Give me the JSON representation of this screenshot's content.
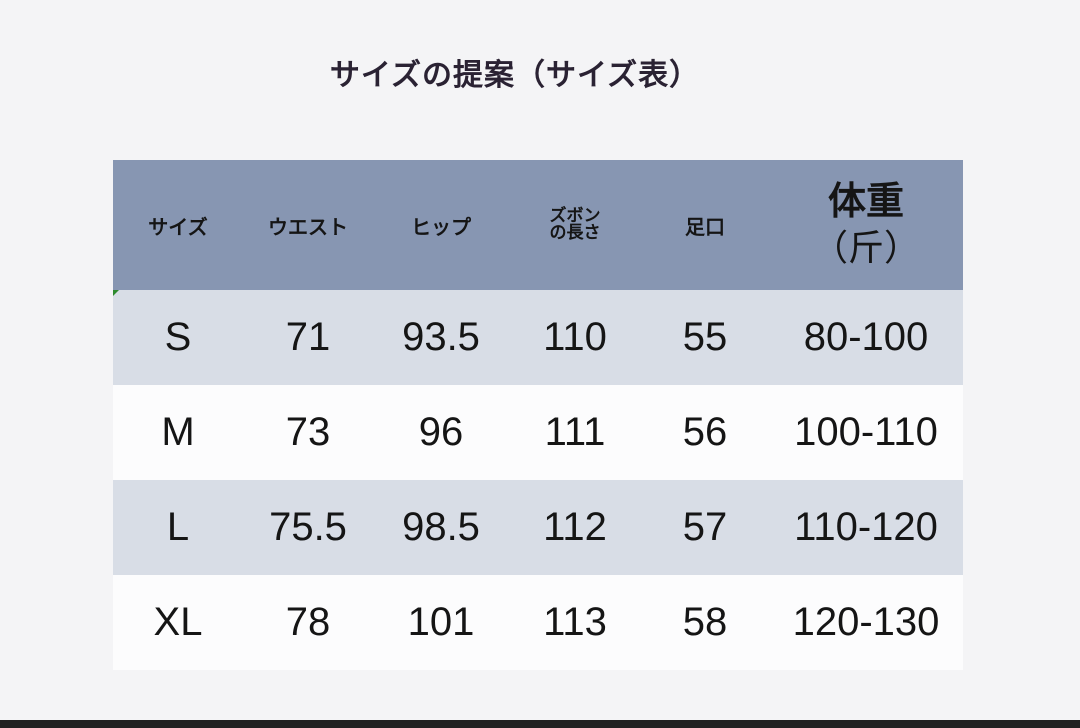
{
  "title": "サイズの提案（サイズ表）",
  "headers": [
    "サイズ",
    "ウエスト",
    "ヒップ",
    "ズボン",
    "の長さ",
    "足口",
    "体重",
    "（斤）"
  ],
  "rows": [
    [
      "S",
      "71",
      "93.5",
      "110",
      "55",
      "80-100"
    ],
    [
      "M",
      "73",
      "96",
      "111",
      "56",
      "100-110"
    ],
    [
      "L",
      "75.5",
      "98.5",
      "112",
      "57",
      "110-120"
    ],
    [
      "XL",
      "78",
      "101",
      "113",
      "58",
      "120-130"
    ]
  ],
  "colors": {
    "header": "#8796b2",
    "alt_row": "#d8dde6",
    "plain_row": "#fcfcfd",
    "background": "#f4f4f6"
  }
}
